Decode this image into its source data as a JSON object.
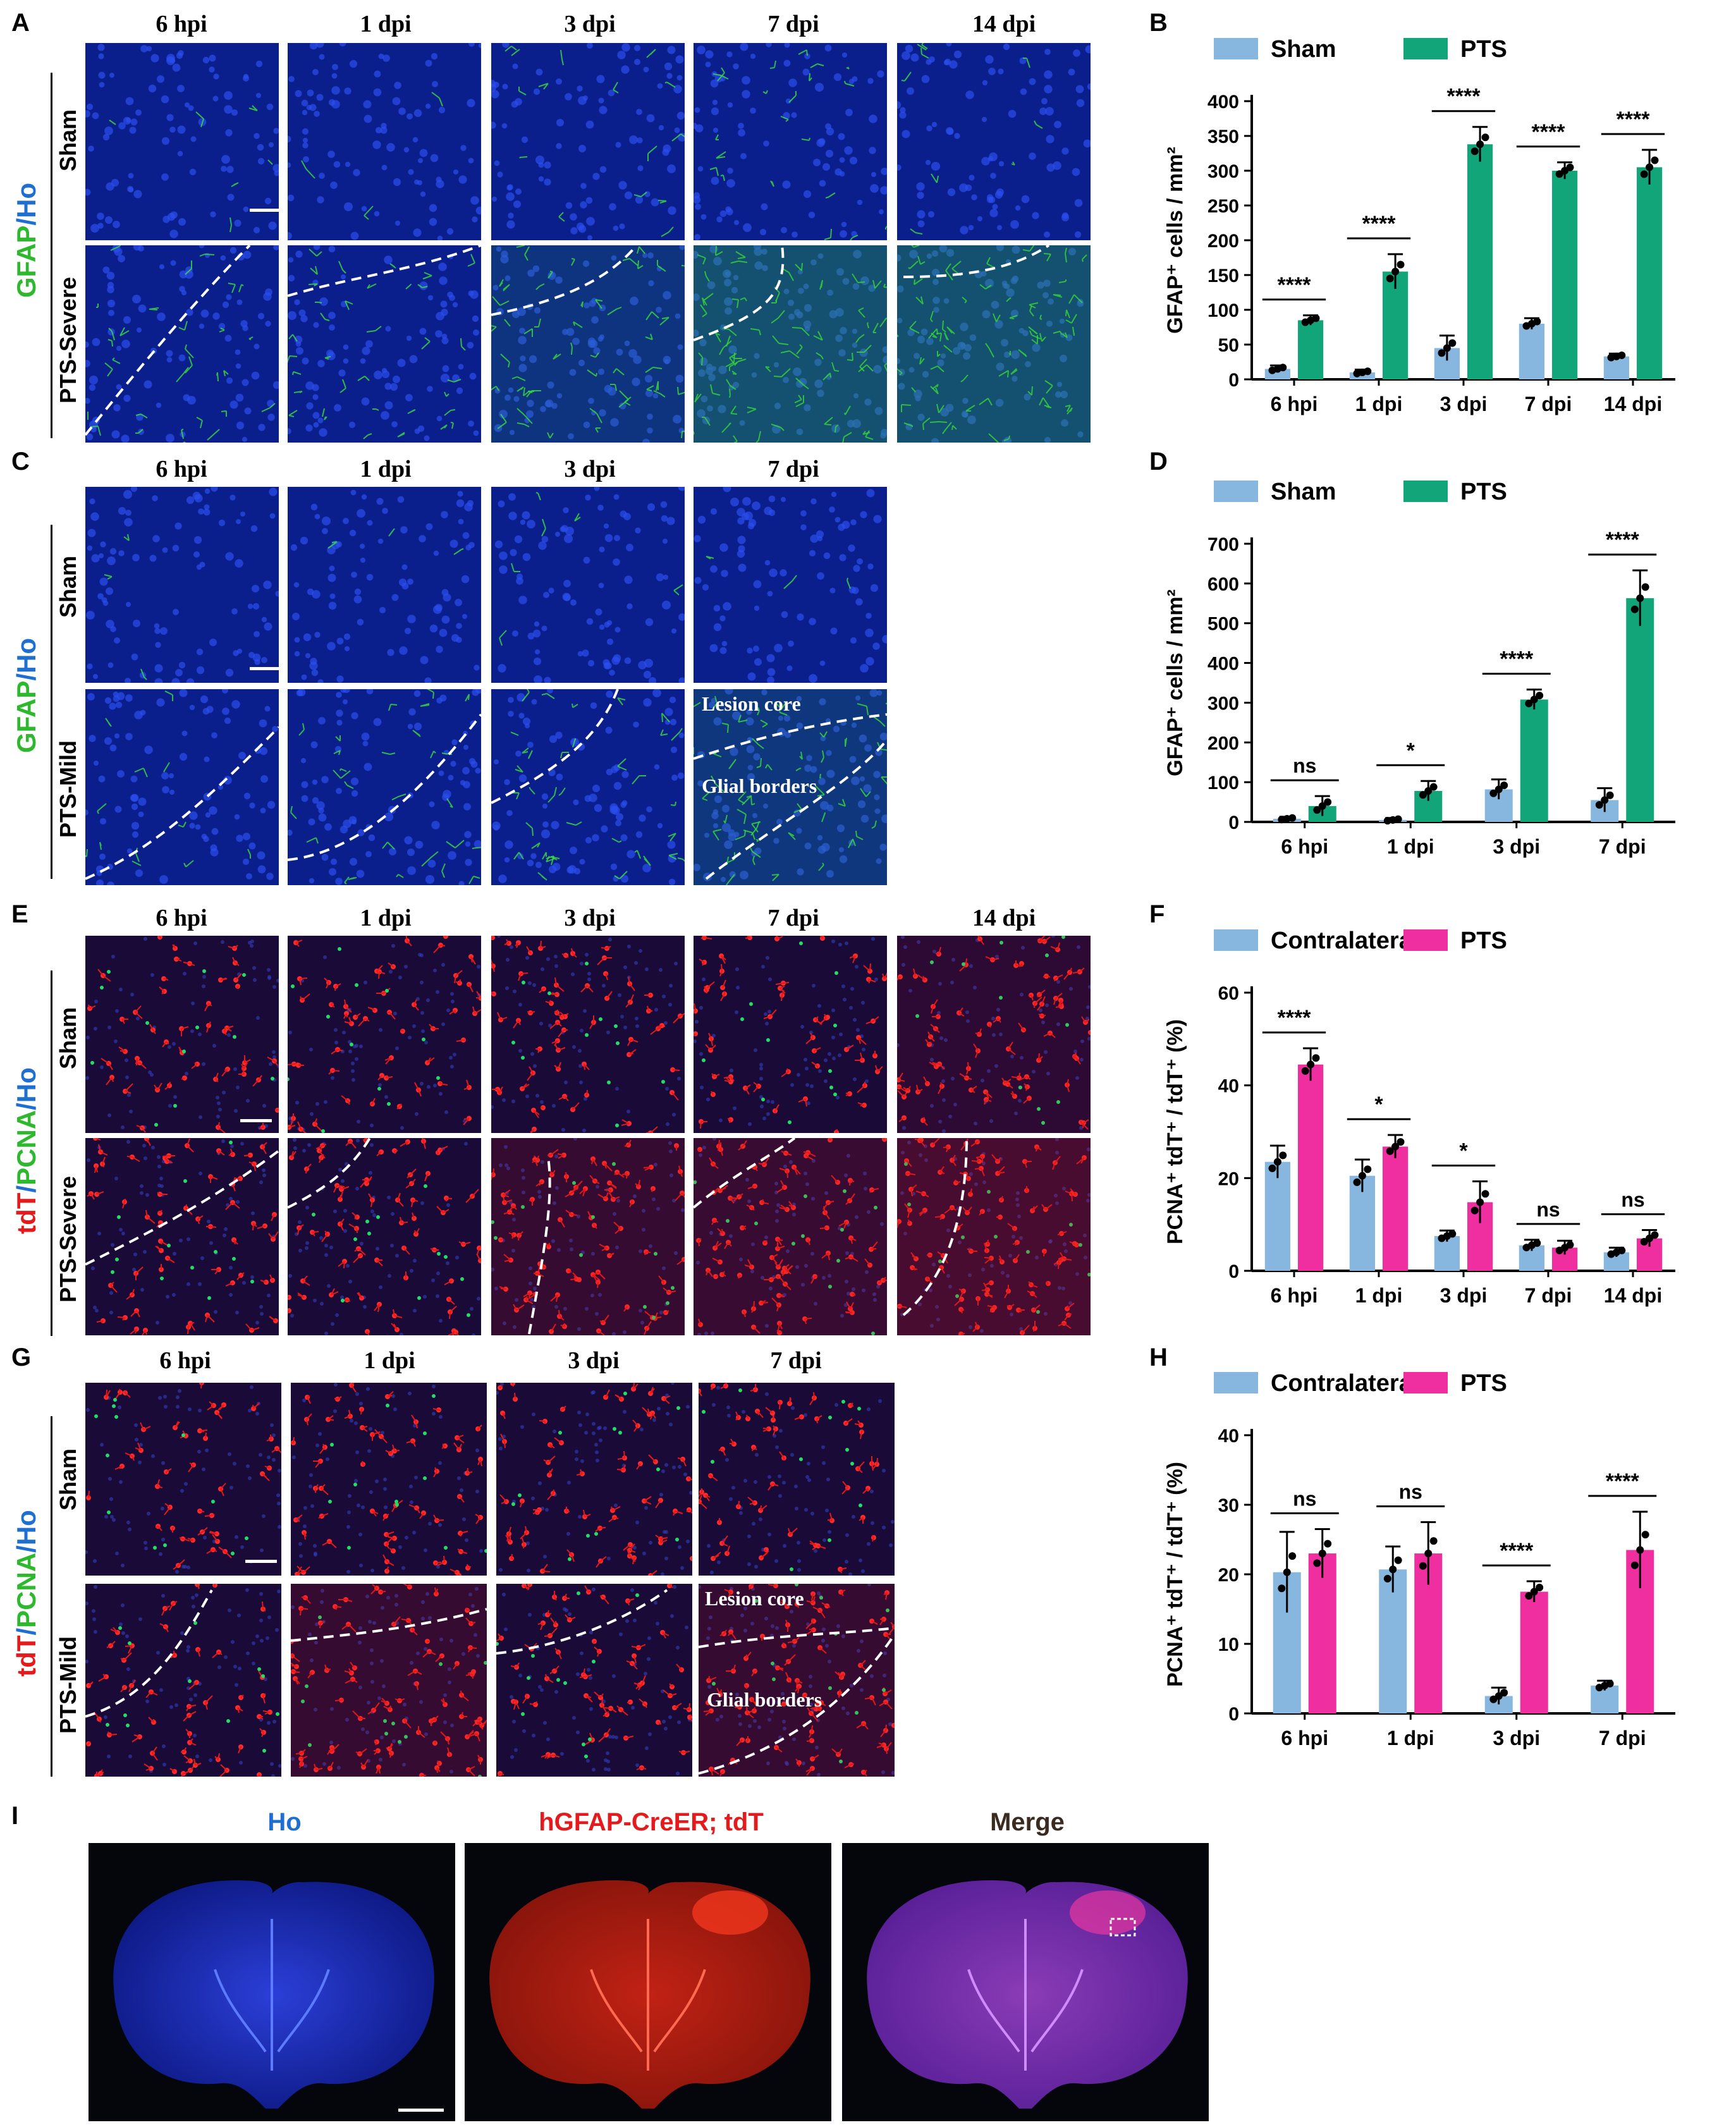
{
  "panels": {
    "A": "A",
    "B": "B",
    "C": "C",
    "D": "D",
    "E": "E",
    "F": "F",
    "G": "G",
    "H": "H",
    "I": "I"
  },
  "columns_5": [
    "6 hpi",
    "1 dpi",
    "3 dpi",
    "7 dpi",
    "14 dpi"
  ],
  "columns_4": [
    "6 hpi",
    "1 dpi",
    "3 dpi",
    "7 dpi"
  ],
  "rows": {
    "sham": "Sham",
    "pts_severe": "PTS-Severe",
    "pts_mild": "PTS-Mild"
  },
  "stain_gfap": {
    "a": "GFAP",
    "slash": "/",
    "b": "Ho"
  },
  "stain_pcna": {
    "a": "tdT",
    "slash1": "/",
    "b": "PCNA",
    "slash2": "/",
    "c": "Ho"
  },
  "overlays": {
    "lesion_core": "Lesion core",
    "glial_borders": "Glial borders"
  },
  "panel_I": {
    "ho": "Ho",
    "tdt": "hGFAP-CreER; tdT",
    "merge": "Merge"
  },
  "colors": {
    "sham": "#87b6de",
    "pts_green": "#13a57a",
    "contra": "#87b6de",
    "pts_pink": "#ef2fa0",
    "gfap": "#2db82d",
    "ho": "#1e6fd0",
    "tdt": "#e41a1c"
  },
  "chart_data": [
    {
      "panel": "B",
      "type": "bar",
      "ylabel": "GFAP⁺ cells / mm²",
      "categories": [
        "6 hpi",
        "1 dpi",
        "3 dpi",
        "7 dpi",
        "14 dpi"
      ],
      "ylim": [
        0,
        400
      ],
      "yticks": [
        0,
        50,
        100,
        150,
        200,
        250,
        300,
        350,
        400
      ],
      "series": [
        {
          "name": "Sham",
          "values": [
            15,
            10,
            45,
            80,
            33
          ],
          "err": [
            5,
            4,
            18,
            8,
            4
          ]
        },
        {
          "name": "PTS",
          "values": [
            85,
            155,
            338,
            300,
            305
          ],
          "err": [
            7,
            25,
            25,
            12,
            25
          ]
        }
      ],
      "sig": [
        "****",
        "****",
        "****",
        "****",
        "****"
      ],
      "legend": "top"
    },
    {
      "panel": "D",
      "type": "bar",
      "ylabel": "GFAP⁺ cells / mm²",
      "categories": [
        "6 hpi",
        "1 dpi",
        "3 dpi",
        "7 dpi"
      ],
      "ylim": [
        0,
        700
      ],
      "yticks": [
        0,
        100,
        200,
        300,
        400,
        500,
        600,
        700
      ],
      "series": [
        {
          "name": "Sham",
          "values": [
            8,
            5,
            82,
            55
          ],
          "err": [
            5,
            5,
            25,
            30
          ]
        },
        {
          "name": "PTS",
          "values": [
            40,
            78,
            308,
            563
          ],
          "err": [
            25,
            25,
            25,
            70
          ]
        }
      ],
      "sig": [
        "ns",
        "*",
        "****",
        "****"
      ],
      "legend": "top"
    },
    {
      "panel": "F",
      "type": "bar",
      "ylabel": "PCNA⁺ tdT⁺ / tdT⁺ (%)",
      "categories": [
        "6 hpi",
        "1 dpi",
        "3 dpi",
        "7 dpi",
        "14 dpi"
      ],
      "ylim": [
        0,
        60
      ],
      "yticks": [
        0,
        20,
        40,
        60
      ],
      "series": [
        {
          "name": "Contralateral",
          "values": [
            23.5,
            20.5,
            7.5,
            5.5,
            4
          ],
          "err": [
            3.5,
            3.5,
            1.2,
            1.2,
            1
          ]
        },
        {
          "name": "PTS",
          "values": [
            44.5,
            26.8,
            14.8,
            5,
            7
          ],
          "err": [
            3.5,
            2.5,
            4.5,
            1.5,
            1.8
          ]
        }
      ],
      "sig": [
        "****",
        "*",
        "*",
        "ns",
        "ns"
      ],
      "legend": "top"
    },
    {
      "panel": "H",
      "type": "bar",
      "ylabel": "PCNA⁺ tdT⁺ / tdT⁺ (%)",
      "categories": [
        "6 hpi",
        "1 dpi",
        "3 dpi",
        "7 dpi"
      ],
      "ylim": [
        0,
        40
      ],
      "yticks": [
        0,
        10,
        20,
        30,
        40
      ],
      "series": [
        {
          "name": "Contralateral",
          "values": [
            20.3,
            20.7,
            2.5,
            4
          ],
          "err": [
            5.8,
            3.3,
            1.2,
            0.7
          ]
        },
        {
          "name": "PTS",
          "values": [
            23,
            23,
            17.5,
            23.5
          ],
          "err": [
            3.5,
            4.5,
            1.5,
            5.5
          ]
        }
      ],
      "sig": [
        "ns",
        "ns",
        "****",
        "****"
      ],
      "legend": "top"
    }
  ]
}
